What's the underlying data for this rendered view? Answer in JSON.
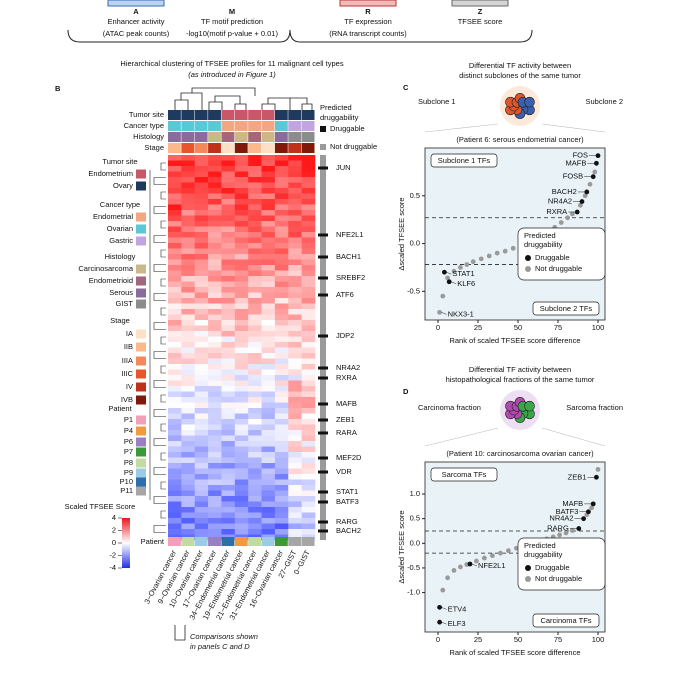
{
  "panel_a": {
    "items": [
      {
        "letter": "A",
        "label": "Enhancer activity",
        "sublabel": "(ATAC peak counts)"
      },
      {
        "letter": "M",
        "label": "TF motif prediction",
        "sublabel": "-log10(motif p-value + 0.01)"
      },
      {
        "letter": "R",
        "label": "TF expression",
        "sublabel": "(RNA transcript counts)"
      },
      {
        "letter": "Z",
        "label": "TFSEE score"
      }
    ]
  },
  "panel_b": {
    "letter": "B",
    "title": "Hierarchical clustering of TFSEE profiles for 11 malignant cell types",
    "subtitle": "(as introduced in Figure 1)",
    "row_labels": [
      "Tumor site",
      "Cancer type",
      "Histology",
      "Stage"
    ],
    "druggability_title": [
      "Predicted",
      "druggability"
    ],
    "druggability_legend": [
      "Druggable",
      "Not druggable"
    ],
    "legends": [
      {
        "title": "Tumor site",
        "items": [
          {
            "label": "Endometrium",
            "color": "#c9576a"
          },
          {
            "label": "Ovary",
            "color": "#1f3a5f"
          }
        ]
      },
      {
        "title": "Cancer type",
        "items": [
          {
            "label": "Endometrial",
            "color": "#f4a582"
          },
          {
            "label": "Ovarian",
            "color": "#5bc8d6"
          },
          {
            "label": "Gastric",
            "color": "#c2a5e0"
          }
        ]
      },
      {
        "title": "Histology",
        "items": [
          {
            "label": "Carcinosarcoma",
            "color": "#c9b98a"
          },
          {
            "label": "Endometrioid",
            "color": "#a2677f"
          },
          {
            "label": "Serous",
            "color": "#8a6c9c"
          },
          {
            "label": "GIST",
            "color": "#8c8c8c"
          }
        ]
      },
      {
        "title": "Stage",
        "items": [
          {
            "label": "IA",
            "color": "#fde0c5"
          },
          {
            "label": "IIB",
            "color": "#fbb88a"
          },
          {
            "label": "IIIA",
            "color": "#f4885a"
          },
          {
            "label": "IIIC",
            "color": "#e8552b"
          },
          {
            "label": "IV",
            "color": "#c0311a"
          },
          {
            "label": "IVB",
            "color": "#7f1a0a"
          }
        ]
      },
      {
        "title": "Patient",
        "items": [
          {
            "label": "P1",
            "color": "#f2a0b8"
          },
          {
            "label": "P4",
            "color": "#f39a3c"
          },
          {
            "label": "P6",
            "color": "#9b7fc4"
          },
          {
            "label": "P7",
            "color": "#3a9a3a"
          },
          {
            "label": "P8",
            "color": "#c4dba0"
          },
          {
            "label": "P9",
            "color": "#9ccbe6"
          },
          {
            "label": "P10",
            "color": "#2c6faa"
          },
          {
            "label": "P11",
            "color": "#a6a6a6"
          }
        ]
      }
    ],
    "colorbar": {
      "title": "Scaled TFSEE Score",
      "lim": [
        -4,
        4
      ],
      "ticks": [
        4,
        2,
        0,
        -2,
        -4
      ]
    },
    "genes": [
      "JUN",
      "NFE2L1",
      "BACH1",
      "SREBF2",
      "ATF6",
      "JDP2",
      "NR4A2",
      "RXRA",
      "MAFB",
      "ZEB1",
      "RARA",
      "MEF2D",
      "VDR",
      "STAT1",
      "BATF3",
      "RARG",
      "BACH2"
    ],
    "patient_label": "Patient",
    "columns": [
      {
        "label": "3−Ovarian cancer",
        "color": "#000000"
      },
      {
        "label": "9−Ovarian cancer",
        "color": "#000000"
      },
      {
        "label": "10−Ovarian cancer",
        "color": "#000000"
      },
      {
        "label": "17−Ovarian cancer",
        "color": "#7b4fb0"
      },
      {
        "label": "34−Endometrial cancer",
        "color": "#2c6faa"
      },
      {
        "label": "19−Endometrial cancer",
        "color": "#e8872b"
      },
      {
        "label": "21−Endometrial cancer",
        "color": "#000000"
      },
      {
        "label": "31−Endometrial cancer",
        "color": "#000000"
      },
      {
        "label": "16−Ovarian cancer",
        "color": "#3a9a3a"
      },
      {
        "label": "27−GIST",
        "color": "#000000"
      },
      {
        "label": "0−GIST",
        "color": "#000000"
      }
    ],
    "comparison_note": [
      "Comparisons shown",
      "in panels C and D"
    ]
  },
  "chart_data": [
    {
      "type": "scatter",
      "letter": "C",
      "title": [
        "Differential TF activity between",
        "distinct subclones of the same tumor"
      ],
      "group_labels": [
        "Subclone 1",
        "Subclone 2"
      ],
      "subtitle": "(Patient 6: serous endometrial cancer)",
      "box_labels": [
        "Subclone 1 TFs",
        "Subclone 2 TFs"
      ],
      "xlabel": "Rank of scaled TFSEE score difference",
      "ylabel": "Δscaled TFSEE score",
      "xlim": [
        -3,
        104
      ],
      "xticks": [
        0,
        25,
        50,
        75,
        100
      ],
      "ylim": [
        -0.8,
        1.0
      ],
      "yticks": [
        -0.5,
        {
          "value": 0,
          "label": "0.0"
        },
        0.5
      ],
      "thresholds": [
        0.27,
        -0.22
      ],
      "legend_title": [
        "Predicted",
        "druggability"
      ],
      "series": [
        {
          "name": "Druggable",
          "color": "#111111",
          "x": [
            4,
            7,
            87,
            90,
            93,
            97,
            99,
            100
          ],
          "values": [
            -0.3,
            -0.4,
            0.33,
            0.44,
            0.54,
            0.7,
            0.84,
            0.92
          ],
          "labels": [
            "STAT1",
            "KLF6",
            "RXRA",
            "NR4A2",
            "BACH2",
            "FOSB",
            "MAFB",
            "FOS"
          ]
        },
        {
          "name": "Not druggable",
          "color": "#9a9a9a",
          "x": [
            1,
            3,
            6,
            10,
            14,
            18,
            22,
            27,
            32,
            37,
            42,
            47,
            52,
            57,
            61,
            65,
            69,
            73,
            77,
            81,
            84,
            89,
            92,
            95,
            98
          ],
          "values": [
            -0.72,
            -0.55,
            -0.36,
            -0.29,
            -0.25,
            -0.22,
            -0.19,
            -0.16,
            -0.13,
            -0.1,
            -0.08,
            -0.05,
            -0.02,
            0.01,
            0.04,
            0.08,
            0.12,
            0.17,
            0.22,
            0.27,
            0.31,
            0.4,
            0.5,
            0.62,
            0.75
          ],
          "labels": [
            "NKX3-1",
            null,
            null,
            null,
            null,
            null,
            null,
            null,
            null,
            null,
            null,
            null,
            null,
            null,
            null,
            null,
            null,
            null,
            null,
            null,
            null,
            null,
            null,
            null,
            null
          ]
        }
      ]
    },
    {
      "type": "scatter",
      "letter": "D",
      "title": [
        "Differential TF activity between",
        "histopathological fractions of the same tumor"
      ],
      "group_labels": [
        "Carcinoma fraction",
        "Sarcoma fraction"
      ],
      "subtitle": "(Patient 10: carcinosarcoma ovarian cancer)",
      "box_labels": [
        "Sarcoma TFs",
        "Carcinoma TFs"
      ],
      "xlabel": "Rank of scaled TFSEE score difference",
      "ylabel": "Δscaled TFSEE score",
      "xlim": [
        -3,
        104
      ],
      "xticks": [
        0,
        25,
        50,
        75,
        100
      ],
      "ylim": [
        -1.8,
        1.65
      ],
      "yticks": [
        {
          "value": -1,
          "label": "-1.0"
        },
        -0.5,
        {
          "value": 0,
          "label": "0.0"
        },
        0.5,
        {
          "value": 1,
          "label": "1.0"
        }
      ],
      "thresholds": [
        0.25,
        -0.2
      ],
      "legend_title": [
        "Predicted",
        "druggability"
      ],
      "series": [
        {
          "name": "Druggable",
          "color": "#111111",
          "x": [
            1,
            1,
            20,
            88,
            91,
            94,
            97,
            99
          ],
          "values": [
            -1.6,
            -1.3,
            -0.42,
            0.3,
            0.5,
            0.64,
            0.8,
            1.34
          ],
          "labels": [
            "ELF3",
            "ETV4",
            "NFE2L1",
            "RARG",
            "NR4A2",
            "BATF3",
            "MAFB",
            "ZEB1"
          ]
        },
        {
          "name": "Not druggable",
          "color": "#9a9a9a",
          "x": [
            3,
            6,
            10,
            14,
            18,
            24,
            29,
            34,
            39,
            44,
            49,
            54,
            59,
            64,
            68,
            72,
            76,
            80,
            84,
            93,
            96,
            100
          ],
          "values": [
            -0.95,
            -0.7,
            -0.55,
            -0.48,
            -0.43,
            -0.36,
            -0.3,
            -0.25,
            -0.2,
            -0.15,
            -0.1,
            -0.05,
            0.0,
            0.05,
            0.09,
            0.13,
            0.17,
            0.21,
            0.26,
            0.58,
            0.72,
            1.5
          ],
          "labels": [
            null,
            null,
            null,
            null,
            null,
            null,
            null,
            null,
            null,
            null,
            null,
            null,
            null,
            null,
            null,
            null,
            null,
            null,
            null,
            null,
            null,
            null
          ]
        }
      ]
    }
  ]
}
